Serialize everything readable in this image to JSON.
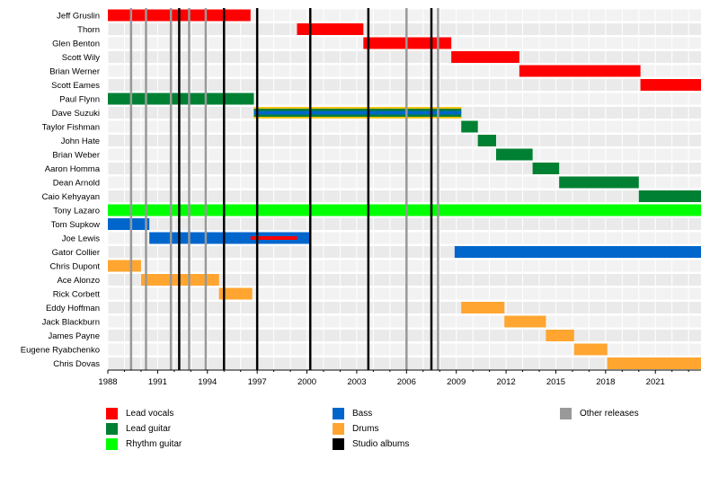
{
  "chart_data": {
    "type": "timeline",
    "title": "",
    "xlim": [
      1988,
      2023.75
    ],
    "x_ticks": [
      "1988",
      "1991",
      "1994",
      "1997",
      "2000",
      "2003",
      "2006",
      "2009",
      "2012",
      "2015",
      "2018",
      "2021"
    ],
    "members": [
      "Jeff Gruslin",
      "Thorn",
      "Glen Benton",
      "Scott Wily",
      "Brian Werner",
      "Scott Eames",
      "Paul Flynn",
      "Dave Suzuki",
      "Taylor Fishman",
      "John Hate",
      "Brian Weber",
      "Aaron Homma",
      "Dean Arnold",
      "Caio Kehyayan",
      "Tony Lazaro",
      "Tom Supkow",
      "Joe Lewis",
      "Gator Collier",
      "Chris Dupont",
      "Ace Alonzo",
      "Rick Corbett",
      "Eddy Hoffman",
      "Jack Blackburn",
      "James Payne",
      "Eugene Ryabchenko",
      "Chris Dovas"
    ],
    "roles": [
      {
        "key": "lead_vocals",
        "label": "Lead vocals",
        "color": "#ff0000"
      },
      {
        "key": "lead_guitar",
        "label": "Lead guitar",
        "color": "#008033"
      },
      {
        "key": "rhythm_guitar",
        "label": "Rhythm guitar",
        "color": "#00ff00"
      },
      {
        "key": "bass",
        "label": "Bass",
        "color": "#0066cc"
      },
      {
        "key": "drums",
        "label": "Drums",
        "color": "#ffa530"
      },
      {
        "key": "studio_albums",
        "label": "Studio albums",
        "color": "#000000"
      },
      {
        "key": "other_releases",
        "label": "Other releases",
        "color": "#999999"
      }
    ],
    "legend_columns": [
      [
        "lead_vocals",
        "lead_guitar",
        "rhythm_guitar"
      ],
      [
        "bass",
        "drums",
        "studio_albums"
      ],
      [
        "other_releases"
      ]
    ],
    "bars": [
      {
        "member": "Jeff Gruslin",
        "role": "lead_vocals",
        "start": 1988.0,
        "end": 1996.6
      },
      {
        "member": "Thorn",
        "role": "lead_vocals",
        "start": 1999.4,
        "end": 2003.4
      },
      {
        "member": "Glen Benton",
        "role": "lead_vocals",
        "start": 2003.4,
        "end": 2008.7
      },
      {
        "member": "Scott Wily",
        "role": "lead_vocals",
        "start": 2008.7,
        "end": 2012.8
      },
      {
        "member": "Brian Werner",
        "role": "lead_vocals",
        "start": 2012.8,
        "end": 2020.1
      },
      {
        "member": "Scott Eames",
        "role": "lead_vocals",
        "start": 2020.1,
        "end": 2023.75
      },
      {
        "member": "Paul Flynn",
        "role": "lead_guitar",
        "start": 1988.0,
        "end": 1996.8
      },
      {
        "member": "Dave Suzuki",
        "role": "lead_guitar",
        "start": 1996.8,
        "end": 2009.3
      },
      {
        "member": "Dave Suzuki",
        "role": "bass",
        "start": 1996.8,
        "end": 2009.3,
        "overlay": true
      },
      {
        "member": "Taylor Fishman",
        "role": "lead_guitar",
        "start": 2009.3,
        "end": 2010.3
      },
      {
        "member": "John Hate",
        "role": "lead_guitar",
        "start": 2010.3,
        "end": 2011.4
      },
      {
        "member": "Brian Weber",
        "role": "lead_guitar",
        "start": 2011.4,
        "end": 2013.6
      },
      {
        "member": "Aaron Homma",
        "role": "lead_guitar",
        "start": 2013.6,
        "end": 2015.2
      },
      {
        "member": "Dean Arnold",
        "role": "lead_guitar",
        "start": 2015.2,
        "end": 2020.0
      },
      {
        "member": "Caio Kehyayan",
        "role": "lead_guitar",
        "start": 2020.0,
        "end": 2023.75
      },
      {
        "member": "Tony Lazaro",
        "role": "rhythm_guitar",
        "start": 1988.0,
        "end": 2023.75
      },
      {
        "member": "Tom Supkow",
        "role": "bass",
        "start": 1988.0,
        "end": 1990.5
      },
      {
        "member": "Joe Lewis",
        "role": "bass",
        "start": 1990.5,
        "end": 2000.2
      },
      {
        "member": "Joe Lewis",
        "role": "lead_vocals",
        "start": 1996.6,
        "end": 1999.4,
        "overlay": true
      },
      {
        "member": "Gator Collier",
        "role": "bass",
        "start": 2008.9,
        "end": 2023.75
      },
      {
        "member": "Chris Dupont",
        "role": "drums",
        "start": 1988.0,
        "end": 1990.0
      },
      {
        "member": "Ace Alonzo",
        "role": "drums",
        "start": 1990.0,
        "end": 1994.7
      },
      {
        "member": "Rick Corbett",
        "role": "drums",
        "start": 1994.7,
        "end": 1996.7
      },
      {
        "member": "Eddy Hoffman",
        "role": "drums",
        "start": 2009.3,
        "end": 2011.9
      },
      {
        "member": "Jack Blackburn",
        "role": "drums",
        "start": 2011.9,
        "end": 2014.4
      },
      {
        "member": "James Payne",
        "role": "drums",
        "start": 2014.4,
        "end": 2016.1
      },
      {
        "member": "Eugene Ryabchenko",
        "role": "drums",
        "start": 2016.1,
        "end": 2018.1
      },
      {
        "member": "Chris Dovas",
        "role": "drums",
        "start": 2018.1,
        "end": 2023.75
      }
    ],
    "studio_albums": [
      1992.3,
      1995.0,
      1997.0,
      2000.2,
      2003.7,
      2007.5
    ],
    "other_releases": [
      1989.4,
      1990.3,
      1991.8,
      1992.9,
      1993.9,
      2006.0,
      2007.9
    ]
  }
}
